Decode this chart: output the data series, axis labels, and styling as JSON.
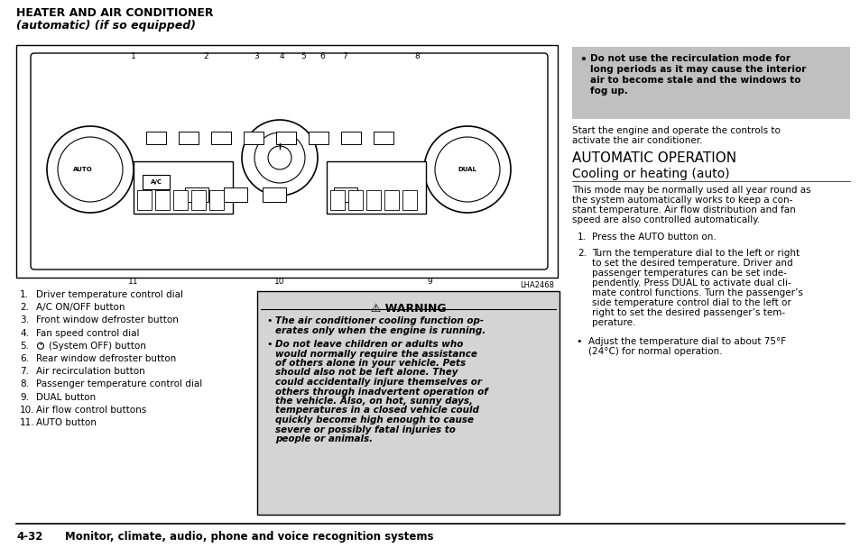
{
  "title_line1": "HEATER AND AIR CONDITIONER",
  "title_line2": "(automatic) (if so equipped)",
  "image_label": "LHA2468",
  "numbered_items": [
    "Driver temperature control dial",
    "A/C ON/OFF button",
    "Front window defroster button",
    "Fan speed control dial",
    "(System OFF) button",
    "Rear window defroster button",
    "Air recirculation button",
    "Passenger temperature control dial",
    "DUAL button",
    "Air flow control buttons",
    "AUTO button"
  ],
  "warning_title": "⚠ WARNING",
  "warn_b1_lines": [
    "The air conditioner cooling function op-",
    "erates only when the engine is running."
  ],
  "warn_b2_lines": [
    "Do not leave children or adults who",
    "would normally require the assistance",
    "of others alone in your vehicle. Pets",
    "should also not be left alone. They",
    "could accidentally injure themselves or",
    "others through inadvertent operation of",
    "the vehicle. Also, on hot, sunny days,",
    "temperatures in a closed vehicle could",
    "quickly become high enough to cause",
    "severe or possibly fatal injuries to",
    "people or animals."
  ],
  "right_bullet_lines": [
    "Do not use the recirculation mode for",
    "long periods as it may cause the interior",
    "air to become stale and the windows to",
    "fog up."
  ],
  "right_para1_lines": [
    "Start the engine and operate the controls to",
    "activate the air conditioner."
  ],
  "right_section1": "AUTOMATIC OPERATION",
  "right_section2": "Cooling or heating (auto)",
  "right_para2_lines": [
    "This mode may be normally used all year round as",
    "the system automatically works to keep a con-",
    "stant temperature. Air flow distribution and fan",
    "speed are also controlled automatically."
  ],
  "right_item1": "Press the AUTO button on.",
  "right_item2_lines": [
    "Turn the temperature dial to the left or right",
    "to set the desired temperature. Driver and",
    "passenger temperatures can be set inde-",
    "pendently. Press DUAL to activate dual cli-",
    "mate control functions. Turn the passenger’s",
    "side temperature control dial to the left or",
    "right to set the desired passenger’s tem-",
    "perature."
  ],
  "right_bullet2_lines": [
    "Adjust the temperature dial to about 75°F",
    "(24°C) for normal operation."
  ],
  "footer_num": "4-32",
  "footer_text": "Monitor, climate, audio, phone and voice recognition systems",
  "bg_color": "#ffffff",
  "warning_bg": "#d4d4d4",
  "right_bullet_bg": "#c0c0c0",
  "border_color": "#000000"
}
